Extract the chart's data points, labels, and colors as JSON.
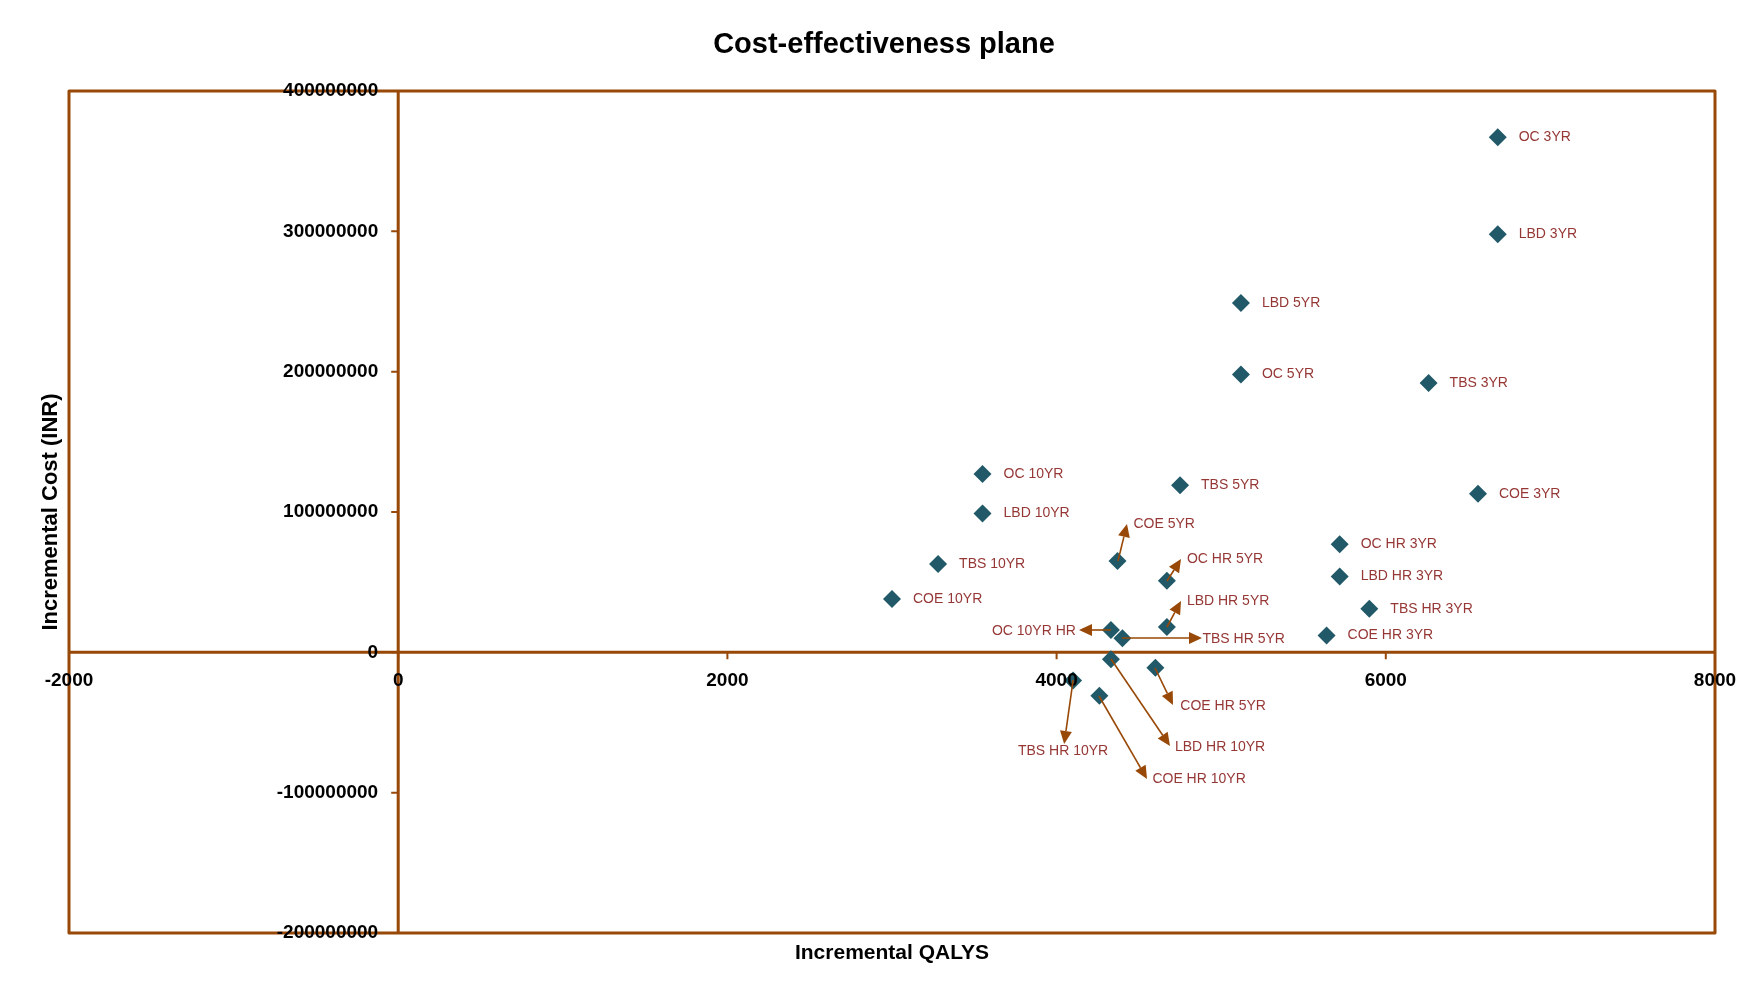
{
  "chart_data": {
    "type": "scatter",
    "title": "Cost-effectiveness plane",
    "xlabel": "Incremental QALYS",
    "ylabel": "Incremental Cost (INR)",
    "x": [
      6680,
      6680,
      6260,
      6560,
      5120,
      5120,
      4750,
      4370,
      3550,
      3550,
      3280,
      3000,
      5720,
      5720,
      5900,
      5640,
      4670,
      4670,
      4400,
      4600,
      4330,
      4330,
      4100,
      4260
    ],
    "values": [
      367000000,
      298000000,
      192000000,
      113000000,
      198000000,
      249000000,
      119000000,
      65000000,
      127000000,
      99000000,
      63000000,
      38000000,
      77000000,
      54000000,
      31000000,
      12000000,
      51000000,
      18000000,
      10000000,
      -11000000,
      16000000,
      -5000000,
      -20000000,
      -31000000
    ],
    "color": "#215968",
    "marker": "diamond",
    "xlim": [
      -2000,
      8000
    ],
    "xticks": [
      -2000,
      0,
      2000,
      4000,
      6000,
      8000
    ],
    "ylim": [
      -200000000,
      400000000
    ],
    "yticks": [
      -200000000,
      -100000000,
      0,
      100000000,
      200000000,
      300000000,
      400000000
    ],
    "annotations": [
      {
        "text": "OC 3YR",
        "x": 6680,
        "y": 367000000
      },
      {
        "text": "LBD 3YR",
        "x": 6680,
        "y": 298000000
      },
      {
        "text": "TBS 3YR",
        "x": 6260,
        "y": 192000000
      },
      {
        "text": "COE 3YR",
        "x": 6560,
        "y": 113000000
      },
      {
        "text": "OC 5YR",
        "x": 5120,
        "y": 198000000
      },
      {
        "text": "LBD 5YR",
        "x": 5120,
        "y": 249000000
      },
      {
        "text": "TBS 5YR",
        "x": 4750,
        "y": 119000000
      },
      {
        "text": "COE 5YR",
        "x": 4370,
        "y": 65000000
      },
      {
        "text": "OC 10YR",
        "x": 3550,
        "y": 127000000
      },
      {
        "text": "LBD 10YR",
        "x": 3550,
        "y": 99000000
      },
      {
        "text": "TBS 10YR",
        "x": 3280,
        "y": 63000000
      },
      {
        "text": "COE 10YR",
        "x": 3000,
        "y": 38000000
      },
      {
        "text": "OC HR 3YR",
        "x": 5720,
        "y": 77000000
      },
      {
        "text": "LBD HR 3YR",
        "x": 5720,
        "y": 54000000
      },
      {
        "text": "TBS HR 3YR",
        "x": 5900,
        "y": 31000000
      },
      {
        "text": "COE HR 3YR",
        "x": 5640,
        "y": 12000000
      },
      {
        "text": "OC HR 5YR",
        "x": 4670,
        "y": 51000000
      },
      {
        "text": "LBD HR 5YR",
        "x": 4670,
        "y": 18000000
      },
      {
        "text": "TBS HR 5YR",
        "x": 4400,
        "y": 10000000
      },
      {
        "text": "COE HR 5YR",
        "x": 4600,
        "y": -11000000
      },
      {
        "text": "OC 10YR HR",
        "x": 4330,
        "y": 16000000
      },
      {
        "text": "LBD HR 10YR",
        "x": 4330,
        "y": -5000000
      },
      {
        "text": "TBS HR 10YR",
        "x": 4100,
        "y": -20000000
      },
      {
        "text": "COE HR 10YR",
        "x": 4260,
        "y": -31000000
      }
    ]
  }
}
